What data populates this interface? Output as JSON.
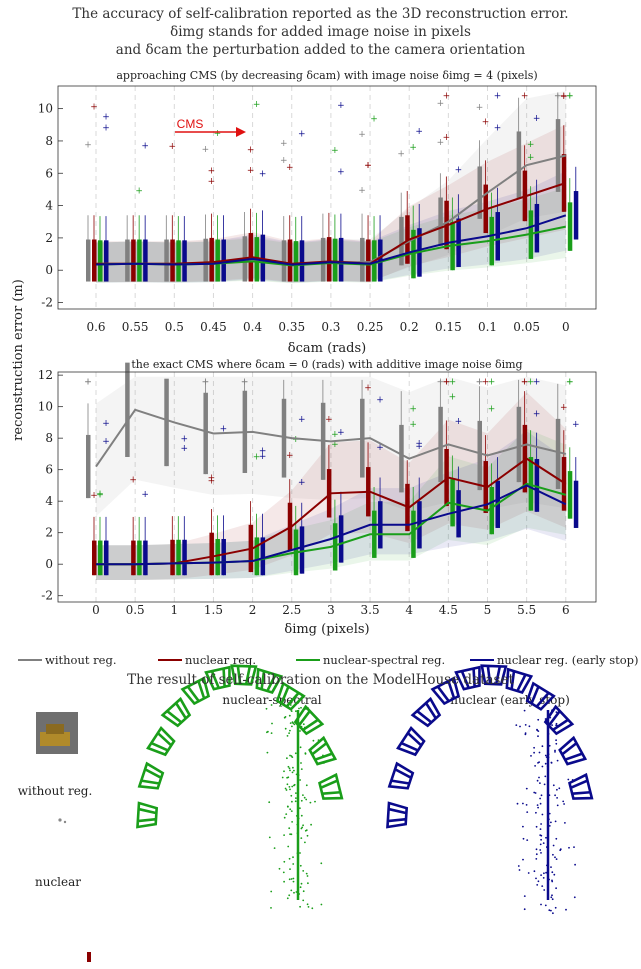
{
  "figure": {
    "title_lines": [
      "The accuracy of self-calibration reported as the 3D reconstruction error.",
      "δimg stands for added image noise in pixels",
      "and δcam the perturbation added to the camera orientation"
    ],
    "ylabel": "reconstruction error (m)"
  },
  "chart_data": [
    {
      "type": "line",
      "title": "approaching CMS (by decreasing δcam) with image noise δimg = 4 (pixels)",
      "xlabel": "δcam (rads)",
      "ylabel": "reconstruction error (m)",
      "x": [
        "0.6",
        "0.55",
        "0.5",
        "0.45",
        "0.4",
        "0.35",
        "0.3",
        "0.25",
        "0.2",
        "0.15",
        "0.1",
        "0.05",
        "0"
      ],
      "ylim": [
        -2.4,
        11.4
      ],
      "yticks": [
        -2,
        0,
        2,
        4,
        6,
        8,
        10
      ],
      "grid": "vertical dashed",
      "annotation": "CMS",
      "series": [
        {
          "name": "without reg.",
          "color": "#808080",
          "values": [
            0.4,
            0.4,
            0.4,
            0.45,
            0.6,
            0.35,
            0.5,
            0.5,
            1.8,
            3.0,
            4.8,
            6.5,
            7.1
          ]
        },
        {
          "name": "nuclear reg.",
          "color": "#8b0000",
          "values": [
            0.4,
            0.4,
            0.4,
            0.5,
            0.8,
            0.4,
            0.55,
            0.4,
            1.9,
            2.8,
            3.8,
            4.6,
            5.4
          ]
        },
        {
          "name": "nuclear-spectral reg.",
          "color": "#1a9e1a",
          "values": [
            0.35,
            0.4,
            0.35,
            0.4,
            0.55,
            0.3,
            0.45,
            0.35,
            1.0,
            1.5,
            1.8,
            2.2,
            2.7
          ]
        },
        {
          "name": "nuclear reg. (early stop)",
          "color": "#0a0a8c",
          "values": [
            0.35,
            0.4,
            0.35,
            0.4,
            0.7,
            0.35,
            0.5,
            0.4,
            1.1,
            1.7,
            2.1,
            2.6,
            3.4
          ]
        }
      ]
    },
    {
      "type": "line",
      "title": "the exact CMS where δcam = 0 (rads) with additive image noise δimg",
      "xlabel": "δimg (pixels)",
      "ylabel": "reconstruction error (m)",
      "x": [
        "0",
        "0.5",
        "1",
        "1.5",
        "2",
        "2.5",
        "3",
        "3.5",
        "4",
        "4.5",
        "5",
        "5.5",
        "6"
      ],
      "ylim": [
        -2.4,
        12.2
      ],
      "yticks": [
        -2,
        0,
        2,
        4,
        6,
        8,
        10,
        12
      ],
      "grid": "vertical dashed",
      "series": [
        {
          "name": "without reg.",
          "color": "#808080",
          "values": [
            6.2,
            9.8,
            9.0,
            8.3,
            8.4,
            8.0,
            7.8,
            8.0,
            6.7,
            7.6,
            6.9,
            7.6,
            7.0
          ]
        },
        {
          "name": "nuclear reg.",
          "color": "#8b0000",
          "values": [
            0.0,
            0.0,
            0.05,
            0.5,
            1.0,
            2.4,
            4.5,
            4.6,
            3.6,
            5.5,
            4.9,
            6.7,
            5.1
          ]
        },
        {
          "name": "nuclear-spectral reg.",
          "color": "#1a9e1a",
          "values": [
            0.0,
            0.0,
            0.05,
            0.1,
            0.2,
            0.7,
            1.1,
            1.9,
            1.9,
            3.9,
            3.4,
            5.1,
            4.4
          ]
        },
        {
          "name": "nuclear reg. (early stop)",
          "color": "#0a0a8c",
          "values": [
            0.0,
            0.0,
            0.05,
            0.1,
            0.2,
            0.9,
            1.6,
            2.5,
            2.5,
            3.2,
            3.8,
            5.0,
            3.8
          ]
        }
      ]
    }
  ],
  "legend": [
    {
      "label": "without reg.",
      "color": "#808080"
    },
    {
      "label": "nuclear reg.",
      "color": "#8b0000"
    },
    {
      "label": "nuclear-spectral reg.",
      "color": "#1a9e1a"
    },
    {
      "label": "nuclear reg. (early stop)",
      "color": "#0a0a8c"
    }
  ],
  "modelhouse": {
    "title": "The result of self-calibration on the ModelHouse dataset",
    "labels": {
      "nuclear_spectral": "nuclear-spectral",
      "nuclear_early": "nuclear (early stop)",
      "without_reg": "without reg.",
      "nuclear": "nuclear"
    },
    "colors": {
      "nuclear_spectral": "#1a9e1a",
      "nuclear_early": "#0a0a8c",
      "without_reg": "#888888",
      "nuclear": "#8b0000"
    }
  }
}
